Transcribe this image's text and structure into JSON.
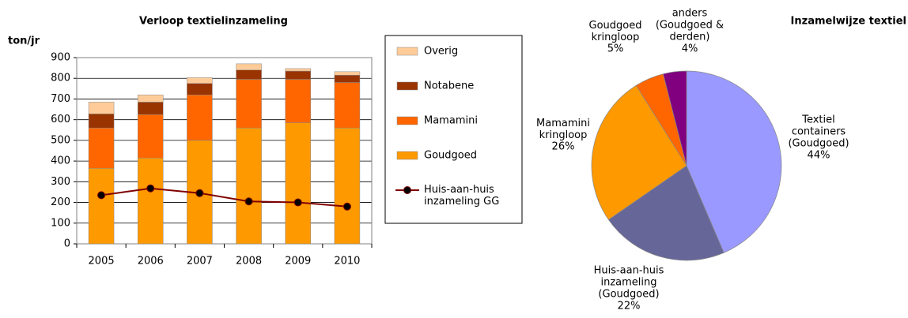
{
  "chart_data": [
    {
      "type": "bar",
      "stacked": true,
      "title": "Verloop textielinzameling",
      "y_label": "ton/jr",
      "categories": [
        "2005",
        "2006",
        "2007",
        "2008",
        "2009",
        "2010"
      ],
      "series": [
        {
          "name": "Goudgoed",
          "color": "#ff9900",
          "values": [
            365,
            415,
            500,
            560,
            585,
            560
          ]
        },
        {
          "name": "Mamamini",
          "color": "#ff6600",
          "values": [
            195,
            210,
            220,
            235,
            210,
            220
          ]
        },
        {
          "name": "Notabene",
          "color": "#993300",
          "values": [
            68,
            60,
            55,
            45,
            40,
            35
          ]
        },
        {
          "name": "Overig",
          "color": "#ffcc99",
          "values": [
            57,
            35,
            28,
            30,
            12,
            17
          ]
        },
        {
          "name": "Huis-aan-huis inzameling GG",
          "type": "line",
          "color": "#800000",
          "marker_color": "#000000",
          "values": [
            235,
            268,
            245,
            205,
            200,
            180
          ]
        }
      ],
      "ylim": [
        0,
        900
      ],
      "yticks": [
        0,
        100,
        200,
        300,
        400,
        500,
        600,
        700,
        800,
        900
      ],
      "grid": true,
      "legend": "right"
    },
    {
      "type": "pie",
      "title": "Inzamelwijze textiel",
      "categories": [
        "Textiel\ncontainers\n(Goudgoed)",
        "Huis-aan-huis\ninzameling\n(Goudgoed)",
        "Mamamini\nkringloop",
        "Goudgoed\nkringloop",
        "anders\n(Goudgoed &\nderden)"
      ],
      "values": [
        44,
        22,
        26,
        5,
        4
      ],
      "value_labels": [
        "44%",
        "22%",
        "26%",
        "5%",
        "4%"
      ],
      "colors": [
        "#9999ff",
        "#666699",
        "#ff9900",
        "#ff6600",
        "#800080"
      ]
    }
  ]
}
